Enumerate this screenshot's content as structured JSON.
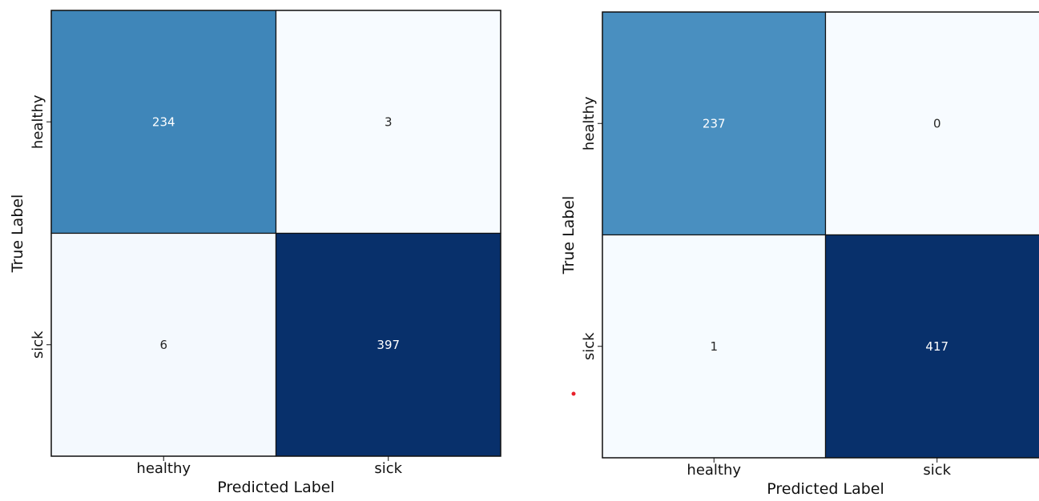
{
  "chart_data": [
    {
      "type": "heatmap",
      "xlabel": "Predicted Label",
      "ylabel": "True Label",
      "x_categories": [
        "healthy",
        "sick"
      ],
      "y_categories": [
        "healthy",
        "sick"
      ],
      "values": [
        [
          234,
          3
        ],
        [
          6,
          397
        ]
      ],
      "colormap": "Blues",
      "colors": {
        "low": "#f7fbff",
        "mid": "#4a98c9",
        "high": "#08306b",
        "text_on_light": "#262626",
        "text_on_dark": "#ffffff"
      }
    },
    {
      "type": "heatmap",
      "xlabel": "Predicted Label",
      "ylabel": "True Label",
      "x_categories": [
        "healthy",
        "sick"
      ],
      "y_categories": [
        "healthy",
        "sick"
      ],
      "values": [
        [
          237,
          0
        ],
        [
          1,
          417
        ]
      ],
      "colormap": "Blues",
      "colors": {
        "low": "#f7fbff",
        "mid": "#539ecd",
        "high": "#08306b",
        "text_on_light": "#262626",
        "text_on_dark": "#ffffff"
      }
    }
  ],
  "marker_color": "#e8202a"
}
